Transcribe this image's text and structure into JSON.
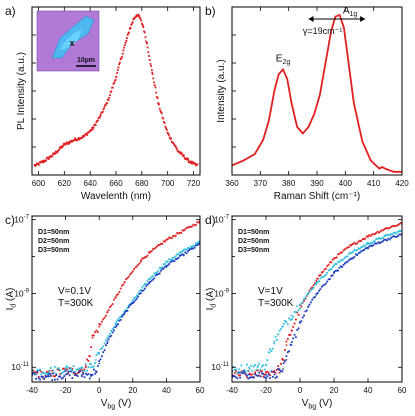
{
  "chart_data": [
    {
      "panel": "a)",
      "type": "scatter",
      "xlabel": "Wavelenth (nm)",
      "ylabel": "PL Intensity (a.u.)",
      "xlim": [
        595,
        725
      ],
      "ylim": [
        0,
        1.05
      ],
      "xticks": [
        600,
        620,
        640,
        660,
        680,
        700,
        720
      ],
      "yscale": "linear",
      "color": "#e02020",
      "inset": {
        "scale_label": "10µm",
        "marker_label": "x",
        "marker_color": "#ff2020"
      },
      "peak": {
        "x": 675,
        "y": 1.0
      },
      "series": [
        {
          "x": [
            598,
            605,
            612,
            620,
            628,
            635,
            642,
            648,
            654,
            660,
            664,
            668,
            671,
            674,
            676,
            678,
            681,
            684,
            688,
            693,
            700,
            708,
            716,
            722
          ],
          "y": [
            0.06,
            0.09,
            0.13,
            0.19,
            0.22,
            0.24,
            0.29,
            0.37,
            0.47,
            0.61,
            0.73,
            0.84,
            0.92,
            0.98,
            1.0,
            0.99,
            0.93,
            0.82,
            0.64,
            0.44,
            0.26,
            0.15,
            0.09,
            0.06
          ]
        }
      ]
    },
    {
      "panel": "b)",
      "type": "line",
      "xlabel": "Raman Shift (cm⁻¹)",
      "ylabel": "Intensity (a.u.)",
      "xlim": [
        360,
        420
      ],
      "ylim": [
        0,
        1.05
      ],
      "xticks": [
        360,
        370,
        380,
        390,
        400,
        410,
        420
      ],
      "color": "#e02020",
      "annotations": [
        {
          "text": "γ=19cm⁻¹"
        },
        {
          "text": "A",
          "sub": "1g",
          "x": 397
        },
        {
          "text": "E",
          "sub": "2g",
          "x": 378
        }
      ],
      "series": [
        {
          "x": [
            360,
            364,
            368,
            371,
            373,
            375,
            376.5,
            378,
            379.5,
            381,
            383,
            385,
            387,
            389,
            391,
            393,
            395,
            396.5,
            398,
            399.5,
            401,
            403,
            406,
            409,
            412,
            413,
            414,
            417,
            420
          ],
          "y": [
            0.06,
            0.09,
            0.13,
            0.22,
            0.34,
            0.53,
            0.63,
            0.66,
            0.6,
            0.45,
            0.3,
            0.26,
            0.3,
            0.38,
            0.5,
            0.7,
            0.9,
            0.99,
            1.0,
            0.92,
            0.72,
            0.45,
            0.21,
            0.09,
            0.04,
            0.05,
            0.04,
            0.02,
            0.02
          ]
        }
      ]
    },
    {
      "panel": "c)",
      "type": "scatter",
      "xlabel": "V",
      "xlabel_sub": "bg",
      "xlabel_unit": " (V)",
      "ylabel": "I",
      "ylabel_sub": "d",
      "ylabel_unit": " (A)",
      "xlim": [
        -40,
        60
      ],
      "ylim_exp": [
        -11.4,
        -6.9
      ],
      "yscale": "log",
      "xticks": [
        -40,
        -20,
        0,
        20,
        40,
        60
      ],
      "yticks_exp": [
        -11,
        -9,
        -7
      ],
      "annotations": [
        "V=0.1V",
        "T=300K"
      ],
      "series": [
        {
          "name": "D1=50nm",
          "color": "#e02020",
          "x": [
            -40,
            -30,
            -20,
            -12,
            -8,
            -6,
            -4,
            0,
            5,
            10,
            15,
            20,
            25,
            30,
            40,
            50,
            60
          ],
          "y": [
            -11.15,
            -11.2,
            -11.1,
            -11.1,
            -11.0,
            -10.7,
            -10.2,
            -9.9,
            -9.5,
            -9.1,
            -8.7,
            -8.4,
            -8.1,
            -7.9,
            -7.55,
            -7.3,
            -7.05
          ]
        },
        {
          "name": "D2=50nm",
          "color": "#30c0e0",
          "x": [
            -40,
            -30,
            -20,
            -10,
            -5,
            -2,
            0,
            5,
            10,
            15,
            20,
            30,
            40,
            50,
            60
          ],
          "y": [
            -11.1,
            -11.1,
            -11.05,
            -11.0,
            -11.0,
            -10.8,
            -10.6,
            -10.2,
            -9.8,
            -9.5,
            -9.2,
            -8.6,
            -8.15,
            -7.85,
            -7.6
          ]
        },
        {
          "name": "D3=50nm",
          "color": "#2040c0",
          "x": [
            -40,
            -30,
            -20,
            -10,
            -5,
            -2,
            0,
            5,
            10,
            15,
            20,
            30,
            40,
            50,
            60
          ],
          "y": [
            -11.2,
            -11.25,
            -11.2,
            -11.2,
            -11.2,
            -11.1,
            -10.9,
            -10.3,
            -9.9,
            -9.55,
            -9.25,
            -8.7,
            -8.25,
            -7.95,
            -7.65
          ]
        }
      ]
    },
    {
      "panel": "d)",
      "type": "scatter",
      "xlabel": "V",
      "xlabel_sub": "bg",
      "xlabel_unit": " (V)",
      "ylabel": "I",
      "ylabel_sub": "d",
      "ylabel_unit": " (A)",
      "xlim": [
        -40,
        60
      ],
      "ylim_exp": [
        -11.4,
        -6.9
      ],
      "yscale": "log",
      "xticks": [
        -40,
        -20,
        0,
        20,
        40,
        60
      ],
      "yticks_exp": [
        -11,
        -9,
        -7
      ],
      "annotations": [
        "V=1V",
        "T=300K"
      ],
      "series": [
        {
          "name": "D1=50nm",
          "color": "#e02020",
          "x": [
            -40,
            -30,
            -20,
            -15,
            -12,
            -10,
            -8,
            -5,
            0,
            5,
            10,
            20,
            30,
            40,
            50,
            60
          ],
          "y": [
            -11.2,
            -11.2,
            -11.15,
            -11.1,
            -11.05,
            -10.8,
            -10.4,
            -10.0,
            -9.4,
            -9.0,
            -8.6,
            -8.05,
            -7.7,
            -7.45,
            -7.25,
            -7.1
          ]
        },
        {
          "name": "D2=50nm",
          "color": "#30c0e0",
          "x": [
            -40,
            -30,
            -25,
            -20,
            -18,
            -15,
            -10,
            -5,
            0,
            5,
            10,
            20,
            30,
            40,
            50,
            60
          ],
          "y": [
            -11.1,
            -11.0,
            -11.0,
            -10.95,
            -10.6,
            -10.3,
            -9.9,
            -9.6,
            -9.3,
            -9.0,
            -8.7,
            -8.25,
            -7.9,
            -7.65,
            -7.45,
            -7.3
          ]
        },
        {
          "name": "D3=50nm",
          "color": "#2040c0",
          "x": [
            -40,
            -30,
            -20,
            -15,
            -10,
            -8,
            -5,
            0,
            5,
            10,
            20,
            30,
            40,
            50,
            60
          ],
          "y": [
            -11.2,
            -11.2,
            -11.2,
            -11.2,
            -11.05,
            -10.8,
            -10.4,
            -9.8,
            -9.35,
            -9.0,
            -8.45,
            -8.05,
            -7.75,
            -7.55,
            -7.4
          ]
        }
      ]
    }
  ]
}
